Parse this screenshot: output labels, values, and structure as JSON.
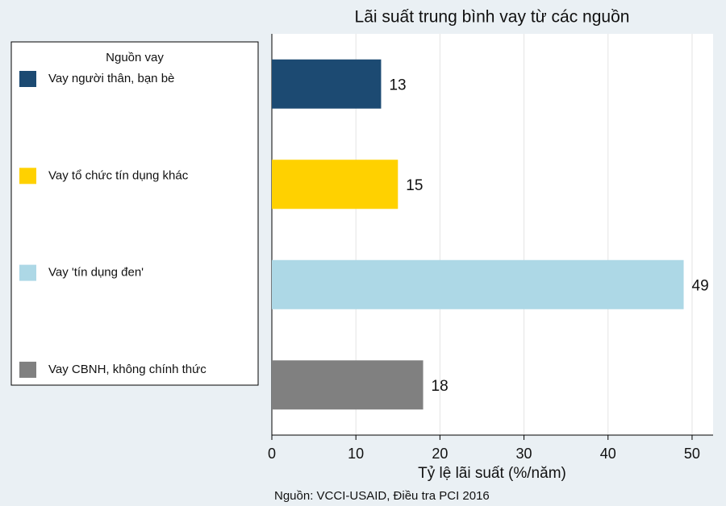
{
  "chart_data": {
    "type": "barh",
    "title": "Lãi suất trung bình vay từ các nguồn",
    "x_label": "Tỷ lệ lãi suất (%/năm)",
    "source": "Nguồn: VCCI-USAID, Điều tra PCI 2016",
    "legend_title": "Nguồn vay",
    "categories": [
      "Vay người thân, bạn bè",
      "Vay tổ chức tín dụng khác",
      "Vay 'tín dụng đen'",
      "Vay CBNH, không chính thức"
    ],
    "values": [
      13,
      15,
      49,
      18
    ],
    "colors": [
      "#1c4a72",
      "#ffd100",
      "#add8e6",
      "#808080"
    ],
    "xlim": [
      0,
      52.5
    ],
    "xticks": [
      0,
      10,
      20,
      30,
      40,
      50
    ],
    "grid": true,
    "legend": "left"
  }
}
